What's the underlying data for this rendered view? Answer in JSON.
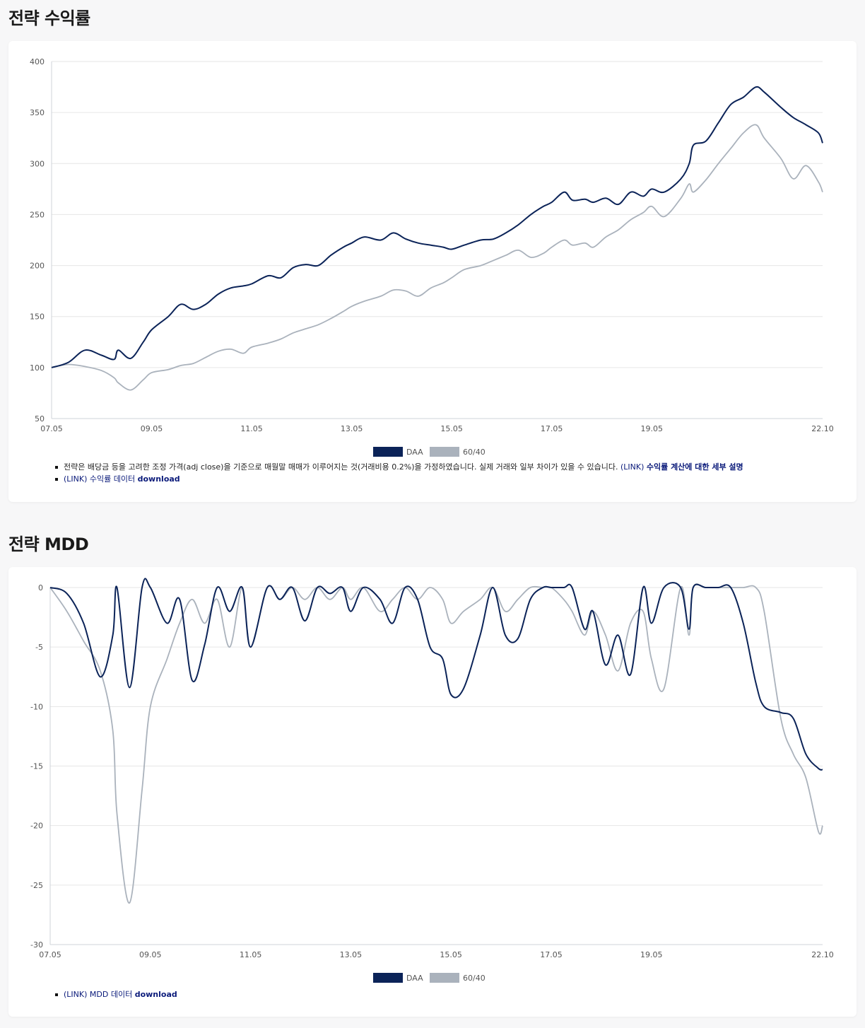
{
  "sections": {
    "returns_title": "전략 수익률",
    "mdd_title": "전략 MDD"
  },
  "notes": {
    "returns_note_text": "전략은 배당금 등을 고려한 조정 가격(adj close)을 기준으로 매월말 매매가 이루어지는 것(거래비용 0.2%)을 가정하였습니다. 실제 거래와 일부 차이가 있을 수 있습니다.",
    "link_tag": "(LINK)",
    "returns_note_link": "수익률 계산에 대한 세부 설명",
    "returns_data_text": "수익률 데이터",
    "mdd_data_text": "MDD 데이터",
    "download": "download"
  },
  "colors": {
    "DAA": "#0b2358",
    "60/40": "#aab2bc",
    "grid": "#e6e6e6"
  },
  "chart_data": [
    {
      "type": "line",
      "x": [
        "07.05",
        "07.09",
        "08.01",
        "08.05",
        "08.08",
        "08.09",
        "08.12",
        "09.03",
        "09.05",
        "09.09",
        "09.12",
        "10.03",
        "10.06",
        "10.09",
        "10.12",
        "11.03",
        "11.05",
        "11.09",
        "11.12",
        "12.03",
        "12.06",
        "12.09",
        "12.12",
        "13.03",
        "13.05",
        "13.08",
        "13.12",
        "14.03",
        "14.06",
        "14.09",
        "14.12",
        "15.03",
        "15.05",
        "15.08",
        "15.12",
        "16.03",
        "16.06",
        "16.09",
        "16.12",
        "17.03",
        "17.05",
        "17.08",
        "17.10",
        "18.01",
        "18.03",
        "18.06",
        "18.09",
        "18.12",
        "19.03",
        "19.05",
        "19.08",
        "19.12",
        "20.02",
        "20.03",
        "20.06",
        "20.09",
        "20.12",
        "21.03",
        "21.06",
        "21.08",
        "21.12",
        "22.03",
        "22.06",
        "22.09",
        "22.10"
      ],
      "series": [
        {
          "name": "DAA",
          "values": [
            100,
            105,
            117,
            112,
            108,
            117,
            109,
            125,
            137,
            150,
            162,
            157,
            162,
            172,
            178,
            180,
            182,
            190,
            188,
            198,
            201,
            200,
            210,
            218,
            222,
            228,
            225,
            232,
            226,
            222,
            220,
            218,
            216,
            220,
            225,
            226,
            232,
            240,
            250,
            258,
            262,
            272,
            264,
            265,
            262,
            266,
            260,
            272,
            268,
            275,
            272,
            285,
            300,
            318,
            322,
            340,
            358,
            365,
            375,
            370,
            355,
            345,
            338,
            330,
            320
          ]
        },
        {
          "name": "60/40",
          "values": [
            100,
            103,
            101,
            97,
            90,
            85,
            78,
            88,
            95,
            98,
            102,
            104,
            110,
            116,
            118,
            114,
            120,
            124,
            128,
            134,
            138,
            142,
            148,
            155,
            160,
            165,
            170,
            176,
            175,
            170,
            178,
            183,
            188,
            196,
            200,
            205,
            210,
            215,
            208,
            212,
            218,
            225,
            220,
            222,
            218,
            228,
            235,
            245,
            252,
            258,
            248,
            266,
            280,
            272,
            284,
            300,
            315,
            330,
            338,
            325,
            305,
            285,
            298,
            282,
            272
          ]
        }
      ],
      "title": "",
      "xlabel": "",
      "ylabel": "",
      "ylim": [
        50,
        400
      ],
      "yticks": [
        "50",
        "100",
        "150",
        "200",
        "250",
        "300",
        "350",
        "400"
      ],
      "xticks": [
        "07.05",
        "09.05",
        "11.05",
        "13.05",
        "15.05",
        "17.05",
        "19.05",
        "22.10"
      ],
      "legend": [
        "DAA",
        "60/40"
      ],
      "legend_position": "bottom",
      "grid": true
    },
    {
      "type": "line",
      "x": [
        "07.05",
        "07.09",
        "08.01",
        "08.05",
        "08.08",
        "08.09",
        "08.12",
        "09.03",
        "09.05",
        "09.09",
        "09.12",
        "10.03",
        "10.06",
        "10.09",
        "10.12",
        "11.03",
        "11.05",
        "11.09",
        "11.12",
        "12.03",
        "12.06",
        "12.09",
        "12.12",
        "13.03",
        "13.05",
        "13.08",
        "13.12",
        "14.03",
        "14.06",
        "14.09",
        "14.12",
        "15.03",
        "15.05",
        "15.08",
        "15.12",
        "16.03",
        "16.06",
        "16.09",
        "16.12",
        "17.03",
        "17.05",
        "17.08",
        "17.10",
        "18.01",
        "18.03",
        "18.06",
        "18.09",
        "18.12",
        "19.03",
        "19.05",
        "19.08",
        "19.12",
        "20.02",
        "20.03",
        "20.06",
        "20.09",
        "20.12",
        "21.03",
        "21.06",
        "21.08",
        "21.12",
        "22.03",
        "22.06",
        "22.09",
        "22.10"
      ],
      "series": [
        {
          "name": "DAA",
          "values": [
            0,
            -0.5,
            -3,
            -7.5,
            -4,
            0,
            -8.4,
            0,
            0,
            -3,
            -1,
            -7.8,
            -4.8,
            0,
            -2,
            0,
            -5,
            0,
            -1,
            0,
            -2.8,
            0,
            -0.5,
            0,
            -2,
            0,
            -1,
            -3,
            0,
            -1,
            -5,
            -6,
            -9,
            -8.5,
            -4,
            0,
            -4,
            -4.3,
            -1,
            0,
            0,
            0,
            0,
            -3.5,
            -2,
            -6.5,
            -4,
            -7.3,
            0,
            -3,
            0,
            0,
            -3.5,
            0,
            0,
            0,
            0,
            -3,
            -8,
            -10,
            -10.5,
            -11,
            -14,
            -15.2,
            -15.3
          ]
        },
        {
          "name": "60/40",
          "values": [
            0,
            -2,
            -4.5,
            -7,
            -12,
            -19,
            -26.5,
            -17,
            -10,
            -6,
            -3,
            -1,
            -3,
            -1,
            -5,
            0,
            -5,
            0,
            -1,
            0,
            -1,
            0,
            -1,
            0,
            -1,
            0,
            -2,
            -1,
            0,
            -1,
            0,
            -1,
            -3,
            -2,
            -1,
            0,
            -2,
            -1,
            0,
            0,
            0,
            -1,
            -2,
            -4,
            -2,
            -4,
            -7,
            -3,
            -2,
            -6,
            -8.5,
            0,
            -4,
            0,
            0,
            0,
            0,
            0,
            0,
            -2,
            -11,
            -14,
            -16,
            -20.5,
            -20
          ]
        }
      ],
      "title": "",
      "xlabel": "",
      "ylabel": "",
      "ylim": [
        -30,
        0
      ],
      "yticks": [
        "-30",
        "-25",
        "-20",
        "-15",
        "-10",
        "-5",
        "0"
      ],
      "xticks": [
        "07.05",
        "09.05",
        "11.05",
        "13.05",
        "15.05",
        "17.05",
        "19.05",
        "22.10"
      ],
      "legend": [
        "DAA",
        "60/40"
      ],
      "legend_position": "bottom",
      "grid": true
    }
  ]
}
